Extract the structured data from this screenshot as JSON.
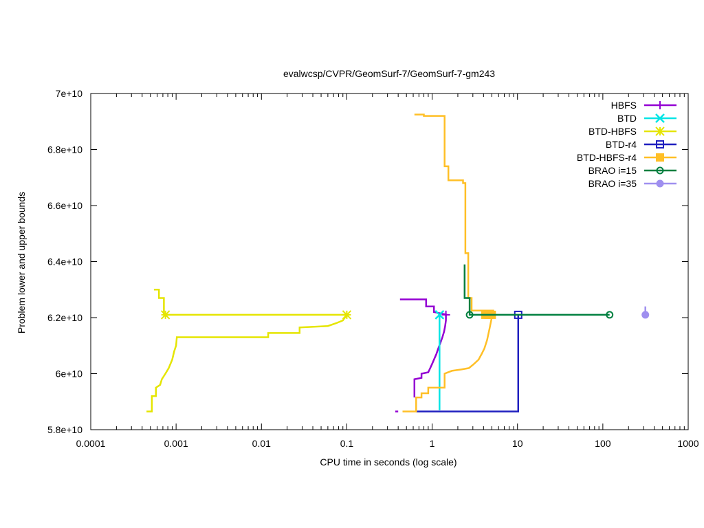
{
  "chart_data": {
    "type": "line",
    "title": "evalwcsp/CVPR/GeomSurf-7/GeomSurf-7-gm243",
    "xlabel": "CPU time in seconds (log scale)",
    "ylabel": "Problem lower and upper bounds",
    "xscale": "log",
    "xlim": [
      0.0001,
      1000
    ],
    "ylim": [
      58000000000,
      70000000000
    ],
    "x_tick_labels": [
      "0.0001",
      "0.001",
      "0.01",
      "0.1",
      "1",
      "10",
      "100",
      "1000"
    ],
    "x_tick_values": [
      0.0001,
      0.001,
      0.01,
      0.1,
      1,
      10,
      100,
      1000
    ],
    "y_tick_labels": [
      "5.8e+10",
      "6e+10",
      "6.2e+10",
      "6.4e+10",
      "6.6e+10",
      "6.8e+10",
      "7e+10"
    ],
    "y_tick_values": [
      58000000000,
      60000000000,
      62000000000,
      64000000000,
      66000000000,
      68000000000,
      70000000000
    ],
    "grid": false,
    "legend_position": "top-right",
    "series": [
      {
        "name": "HBFS",
        "color": "#9400d3",
        "marker": "plus",
        "points": [
          [
            0.37,
            58650000000
          ],
          [
            0.4,
            58650000000
          ]
        ],
        "upper": [
          [
            0.42,
            62650000000
          ],
          [
            0.85,
            62650000000
          ],
          [
            0.85,
            62400000000
          ],
          [
            1.05,
            62400000000
          ],
          [
            1.05,
            62200000000
          ],
          [
            1.5,
            62100000000
          ]
        ],
        "lower": [
          [
            0.62,
            59150000000
          ],
          [
            0.62,
            59800000000
          ],
          [
            0.75,
            59850000000
          ],
          [
            0.75,
            60000000000
          ],
          [
            0.9,
            60050000000
          ],
          [
            0.95,
            60200000000
          ],
          [
            1.0,
            60350000000
          ],
          [
            1.05,
            60500000000
          ],
          [
            1.12,
            60700000000
          ],
          [
            1.18,
            60900000000
          ],
          [
            1.25,
            61100000000
          ],
          [
            1.32,
            61300000000
          ],
          [
            1.38,
            61500000000
          ],
          [
            1.42,
            61700000000
          ],
          [
            1.45,
            61900000000
          ],
          [
            1.45,
            62100000000
          ]
        ],
        "marker_points": [
          [
            1.45,
            62100000000
          ]
        ]
      },
      {
        "name": "BTD",
        "color": "#00e5e5",
        "marker": "cross",
        "upper": [],
        "lower": [
          [
            1.22,
            58700000000
          ],
          [
            1.22,
            62100000000
          ]
        ],
        "marker_points": [
          [
            1.22,
            62100000000
          ]
        ]
      },
      {
        "name": "BTD-HBFS",
        "color": "#e5e500",
        "marker": "star",
        "upper": [
          [
            0.00055,
            63000000000
          ],
          [
            0.00063,
            63000000000
          ],
          [
            0.00063,
            62700000000
          ],
          [
            0.00072,
            62700000000
          ],
          [
            0.00072,
            62100000000
          ],
          [
            0.1,
            62100000000
          ]
        ],
        "lower": [
          [
            0.00045,
            58650000000
          ],
          [
            0.00052,
            58650000000
          ],
          [
            0.00052,
            59200000000
          ],
          [
            0.00058,
            59200000000
          ],
          [
            0.00058,
            59500000000
          ],
          [
            0.00065,
            59600000000
          ],
          [
            0.00068,
            59800000000
          ],
          [
            0.00075,
            60000000000
          ],
          [
            0.00082,
            60200000000
          ],
          [
            0.0009,
            60500000000
          ],
          [
            0.00095,
            60800000000
          ],
          [
            0.001,
            61000000000
          ],
          [
            0.00102,
            61300000000
          ],
          [
            0.012,
            61300000000
          ],
          [
            0.012,
            61450000000
          ],
          [
            0.028,
            61450000000
          ],
          [
            0.028,
            61650000000
          ],
          [
            0.06,
            61700000000
          ],
          [
            0.075,
            61800000000
          ],
          [
            0.09,
            61900000000
          ],
          [
            0.1,
            62100000000
          ]
        ],
        "marker_points": [
          [
            0.00075,
            62100000000
          ],
          [
            0.1,
            62100000000
          ]
        ]
      },
      {
        "name": "BTD-r4",
        "color": "#1f1fbf",
        "marker": "square-open",
        "upper": [],
        "lower": [
          [
            0.65,
            58650000000
          ],
          [
            10.2,
            58650000000
          ],
          [
            10.2,
            62100000000
          ]
        ],
        "marker_points": [
          [
            10.2,
            62100000000
          ]
        ]
      },
      {
        "name": "BTD-HBFS-r4",
        "color": "#ffbf26",
        "marker": "square-filled",
        "upper": [
          [
            0.62,
            69250000000
          ],
          [
            0.8,
            69250000000
          ],
          [
            0.8,
            69200000000
          ],
          [
            1.4,
            69200000000
          ],
          [
            1.4,
            67400000000
          ],
          [
            1.55,
            67400000000
          ],
          [
            1.55,
            66900000000
          ],
          [
            2.3,
            66900000000
          ],
          [
            2.3,
            66800000000
          ],
          [
            2.45,
            66800000000
          ],
          [
            2.45,
            64300000000
          ],
          [
            2.65,
            64300000000
          ],
          [
            2.65,
            62700000000
          ],
          [
            2.9,
            62700000000
          ],
          [
            2.9,
            62250000000
          ],
          [
            5.2,
            62250000000
          ],
          [
            5.2,
            62100000000
          ]
        ],
        "lower": [
          [
            0.45,
            58650000000
          ],
          [
            0.65,
            58650000000
          ],
          [
            0.65,
            59150000000
          ],
          [
            0.75,
            59150000000
          ],
          [
            0.75,
            59300000000
          ],
          [
            0.9,
            59300000000
          ],
          [
            0.9,
            59500000000
          ],
          [
            1.4,
            59500000000
          ],
          [
            1.4,
            60000000000
          ],
          [
            1.7,
            60100000000
          ],
          [
            2.2,
            60150000000
          ],
          [
            2.7,
            60200000000
          ],
          [
            3.1,
            60350000000
          ],
          [
            3.5,
            60500000000
          ],
          [
            3.8,
            60700000000
          ],
          [
            4.1,
            60900000000
          ],
          [
            4.4,
            61200000000
          ],
          [
            4.7,
            61600000000
          ],
          [
            5.0,
            62000000000
          ],
          [
            5.2,
            62100000000
          ]
        ],
        "marker_points": [
          [
            4.2,
            62100000000
          ],
          [
            4.6,
            62100000000
          ],
          [
            5.0,
            62100000000
          ]
        ]
      },
      {
        "name": "BRAO i=15",
        "color": "#007f3f",
        "marker": "circle-open",
        "upper": [
          [
            2.4,
            63900000000
          ],
          [
            2.4,
            62700000000
          ],
          [
            2.75,
            62700000000
          ],
          [
            2.75,
            62100000000
          ],
          [
            120,
            62100000000
          ]
        ],
        "lower": [],
        "marker_points": [
          [
            2.75,
            62100000000
          ],
          [
            120,
            62100000000
          ]
        ]
      },
      {
        "name": "BRAO i=35",
        "color": "#9f8fef",
        "marker": "circle-filled",
        "upper": [
          [
            315,
            62400000000
          ],
          [
            315,
            62100000000
          ]
        ],
        "lower": [],
        "marker_points": [
          [
            315,
            62100000000
          ]
        ]
      }
    ]
  }
}
